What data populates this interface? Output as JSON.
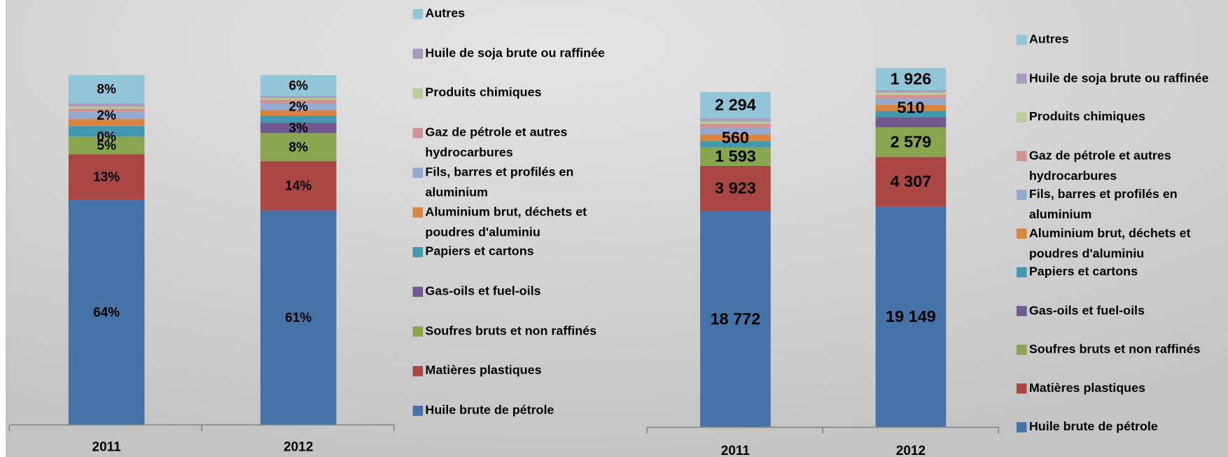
{
  "chart_data": [
    {
      "type": "bar",
      "stacked": true,
      "categories": [
        "2011",
        "2012"
      ],
      "series": [
        {
          "name": "Huile brute de pétrole",
          "color": "#4572a7",
          "values": [
            64,
            61
          ],
          "value_labels": [
            "64%",
            "61%"
          ]
        },
        {
          "name": "Matières plastiques",
          "color": "#aa4643",
          "values": [
            13,
            14
          ],
          "value_labels": [
            "13%",
            "14%"
          ]
        },
        {
          "name": "Soufres bruts et non raffinés",
          "color": "#89a54e",
          "values": [
            5,
            8
          ],
          "value_labels": [
            "5%",
            "8%"
          ]
        },
        {
          "name": "Gas-oils et fuel-oils",
          "color": "#71588f",
          "values": [
            0,
            3
          ],
          "value_labels": [
            "0%",
            "3%"
          ]
        },
        {
          "name": "Papiers et cartons",
          "color": "#4198af",
          "values": [
            3,
            2
          ],
          "value_labels": [
            null,
            null
          ]
        },
        {
          "name": "Aluminium brut, déchets et poudres d'aluminiu",
          "color": "#db843d",
          "values": [
            2,
            1.5
          ],
          "value_labels": [
            null,
            null
          ]
        },
        {
          "name": "Fils, barres et profilés en aluminium",
          "color": "#93a9cf",
          "values": [
            2,
            2
          ],
          "value_labels": [
            "2%",
            "2%"
          ]
        },
        {
          "name": "Gaz de pétrole et autres hydrocarbures",
          "color": "#d19392",
          "values": [
            1,
            1
          ],
          "value_labels": [
            null,
            null
          ]
        },
        {
          "name": "Produits chimiques",
          "color": "#b9cd96",
          "values": [
            0.5,
            0.5
          ],
          "value_labels": [
            null,
            null
          ]
        },
        {
          "name": "Huile de soja brute ou raffinée",
          "color": "#a99bbd",
          "values": [
            1,
            0.5
          ],
          "value_labels": [
            null,
            null
          ]
        },
        {
          "name": "Autres",
          "color": "#92c5d8",
          "values": [
            8,
            6
          ],
          "value_labels": [
            "8%",
            "6%"
          ]
        }
      ]
    },
    {
      "type": "bar",
      "stacked": true,
      "categories": [
        "2011",
        "2012"
      ],
      "series": [
        {
          "name": "Huile brute de pétrole",
          "color": "#4572a7",
          "values": [
            18772,
            19149
          ],
          "value_labels": [
            "18 772",
            "19 149"
          ]
        },
        {
          "name": "Matières plastiques",
          "color": "#aa4643",
          "values": [
            3923,
            4307
          ],
          "value_labels": [
            "3 923",
            "4 307"
          ]
        },
        {
          "name": "Soufres bruts et non raffinés",
          "color": "#89a54e",
          "values": [
            1593,
            2579
          ],
          "value_labels": [
            "1 593",
            "2 579"
          ]
        },
        {
          "name": "Gas-oils et fuel-oils",
          "color": "#71588f",
          "values": [
            0,
            880
          ],
          "value_labels": [
            null,
            null
          ]
        },
        {
          "name": "Papiers et cartons",
          "color": "#4198af",
          "values": [
            544,
            540
          ],
          "value_labels": [
            null,
            null
          ]
        },
        {
          "name": "Aluminium brut, déchets et poudres d'aluminiu",
          "color": "#db843d",
          "values": [
            560,
            510
          ],
          "value_labels": [
            "560",
            "510"
          ]
        },
        {
          "name": "Fils, barres et profilés en aluminium",
          "color": "#93a9cf",
          "values": [
            600,
            540
          ],
          "value_labels": [
            null,
            null
          ]
        },
        {
          "name": "Gaz de pétrole et autres hydrocarbures",
          "color": "#d19392",
          "values": [
            340,
            340
          ],
          "value_labels": [
            null,
            null
          ]
        },
        {
          "name": "Produits chimiques",
          "color": "#b9cd96",
          "values": [
            200,
            200
          ],
          "value_labels": [
            null,
            null
          ]
        },
        {
          "name": "Huile de soja brute ou raffinée",
          "color": "#a99bbd",
          "values": [
            270,
            200
          ],
          "value_labels": [
            null,
            null
          ]
        },
        {
          "name": "Autres",
          "color": "#92c5d8",
          "values": [
            2294,
            1926
          ],
          "value_labels": [
            "2 294",
            "1 926"
          ]
        }
      ]
    }
  ]
}
